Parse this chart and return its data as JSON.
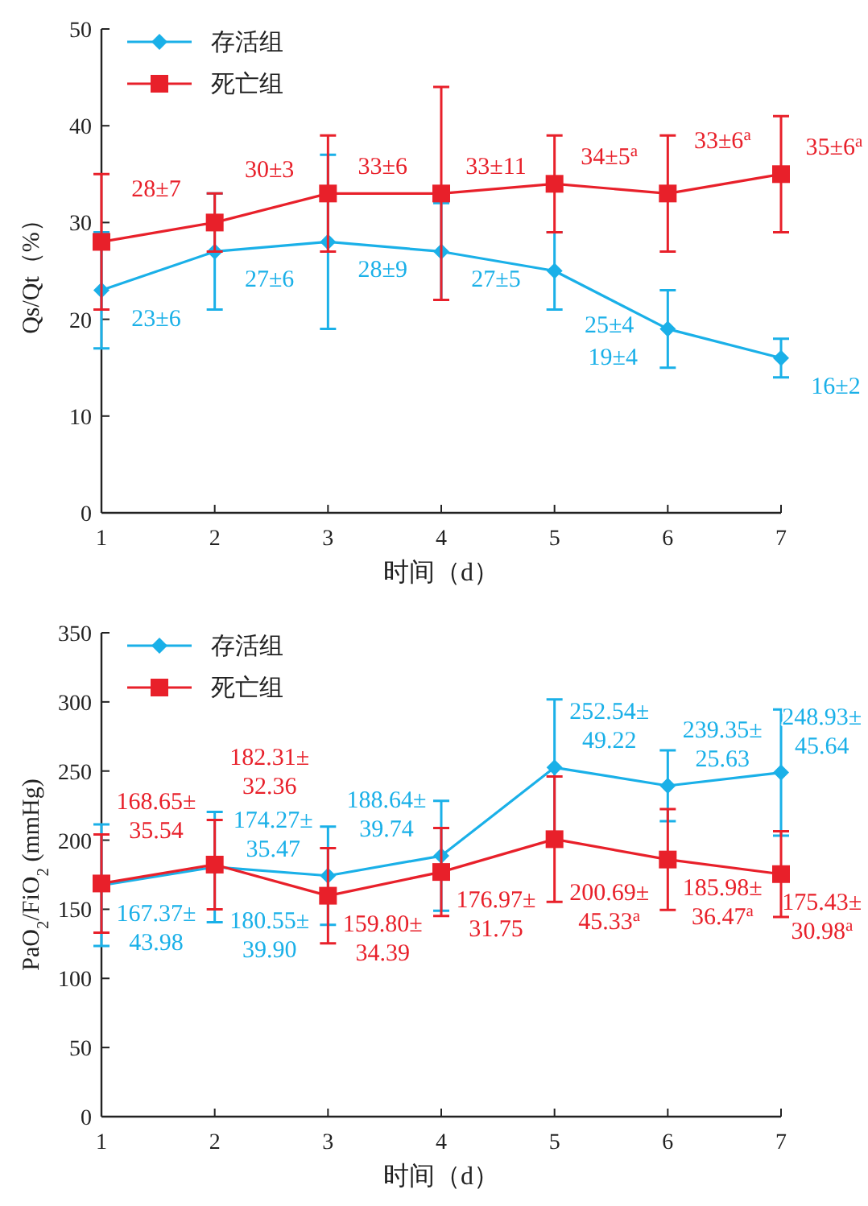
{
  "chart_data": [
    {
      "type": "line",
      "xlabel": "时间（d）",
      "ylabel": "Qs/Qt（%）",
      "x": [
        1,
        2,
        3,
        4,
        5,
        6,
        7
      ],
      "xlim": [
        1,
        7
      ],
      "xticks": [
        1,
        2,
        3,
        4,
        5,
        6,
        7
      ],
      "ylim": [
        0,
        50
      ],
      "yticks": [
        0,
        10,
        20,
        30,
        40,
        50
      ],
      "legend": "top left",
      "grid": false,
      "series": [
        {
          "name": "存活组",
          "color": "#1ab0e8",
          "marker": "diamond",
          "values": [
            23,
            27,
            28,
            27,
            25,
            19,
            16
          ],
          "errors": [
            6,
            6,
            9,
            5,
            4,
            4,
            2
          ],
          "value_labels": [
            "23±6",
            "27±6",
            "28±9",
            "27±5",
            "25±4",
            "19±4",
            "16±2"
          ]
        },
        {
          "name": "死亡组",
          "color": "#e8202a",
          "marker": "square",
          "values": [
            28,
            30,
            33,
            33,
            34,
            33,
            35
          ],
          "errors": [
            7,
            3,
            6,
            11,
            5,
            6,
            6
          ],
          "value_labels": [
            "28±7",
            "30±3",
            "33±6",
            "33±11",
            "34±5$^{a}$",
            "33±6$^{a}$",
            "35±6$^{a}$"
          ]
        }
      ]
    },
    {
      "type": "line",
      "xlabel": "时间（d）",
      "ylabel": "PaO$_{2}$/FiO$_{2}$ (mmHg)",
      "x": [
        1,
        2,
        3,
        4,
        5,
        6,
        7
      ],
      "xlim": [
        1,
        7
      ],
      "xticks": [
        1,
        2,
        3,
        4,
        5,
        6,
        7
      ],
      "ylim": [
        0,
        350
      ],
      "yticks": [
        0,
        50,
        100,
        150,
        200,
        250,
        300,
        350
      ],
      "legend": "top left",
      "grid": false,
      "series": [
        {
          "name": "存活组",
          "color": "#1ab0e8",
          "marker": "diamond",
          "values": [
            167.37,
            180.55,
            174.27,
            188.64,
            252.54,
            239.35,
            248.93
          ],
          "errors": [
            43.98,
            39.9,
            35.47,
            39.74,
            49.22,
            25.63,
            45.64
          ],
          "value_labels": [
            "167.37±43.98",
            "180.55±39.90",
            "174.27±35.47",
            "188.64±39.74",
            "252.54±49.22",
            "239.35±25.63",
            "248.93±45.64"
          ]
        },
        {
          "name": "死亡组",
          "color": "#e8202a",
          "marker": "square",
          "values": [
            168.65,
            182.31,
            159.8,
            176.97,
            200.69,
            185.98,
            175.43
          ],
          "errors": [
            35.54,
            32.36,
            34.39,
            31.75,
            45.33,
            36.47,
            30.98
          ],
          "value_labels": [
            "168.65±35.54",
            "182.31±32.36",
            "159.80±34.39",
            "176.97±31.75",
            "200.69±45.33$^{a}$",
            "185.98±36.47$^{a}$",
            "175.43±30.98$^{a}$"
          ]
        }
      ]
    }
  ]
}
